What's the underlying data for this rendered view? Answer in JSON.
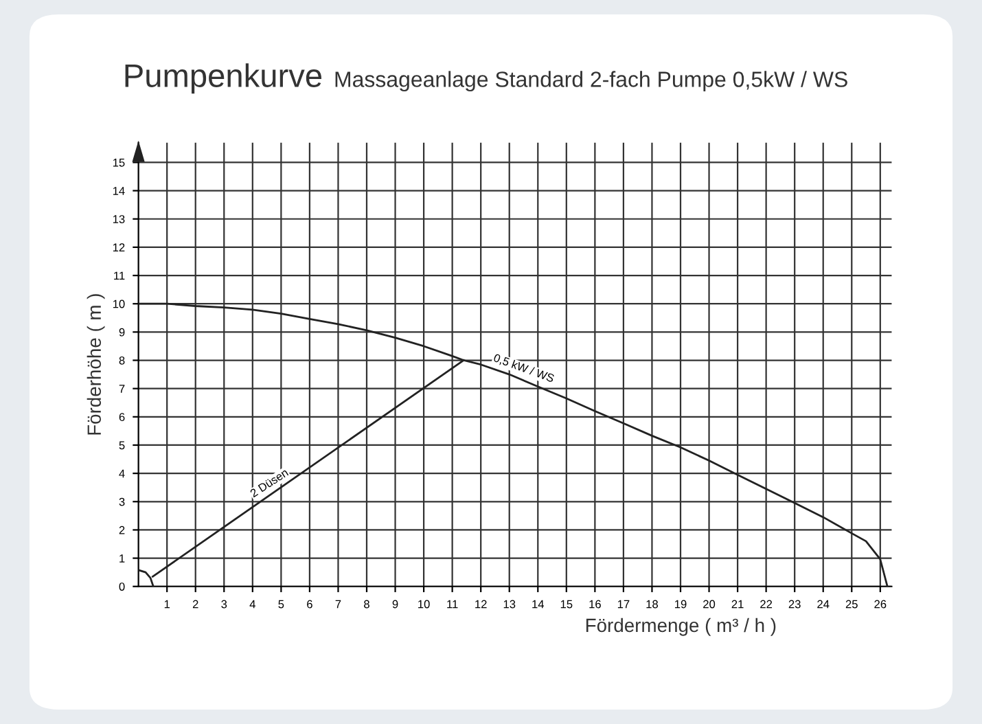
{
  "chart_data": {
    "type": "line",
    "title": "Pumpenkurve",
    "subtitle": "Massageanlage Standard 2-fach Pumpe 0,5kW / WS",
    "xlabel": "Fördermenge ( m³ / h )",
    "ylabel": "Förderhöhe ( m )",
    "xlim": [
      0,
      26.4
    ],
    "ylim": [
      0,
      15.7
    ],
    "xticks": [
      1,
      2,
      3,
      4,
      5,
      6,
      7,
      8,
      9,
      10,
      11,
      12,
      13,
      14,
      15,
      16,
      17,
      18,
      19,
      20,
      21,
      22,
      23,
      24,
      25,
      26
    ],
    "yticks": [
      0,
      1,
      2,
      3,
      4,
      5,
      6,
      7,
      8,
      9,
      10,
      11,
      12,
      13,
      14,
      15
    ],
    "grid": true,
    "marker": "none",
    "line_style": "solid",
    "series": [
      {
        "color": "#222222",
        "x": [
          0,
          1,
          2,
          3,
          4,
          5,
          6,
          7,
          8,
          9,
          10,
          11,
          11.4,
          12,
          13,
          14,
          15,
          16,
          17,
          18,
          19,
          20,
          21,
          22,
          23,
          24,
          25,
          25.5,
          26,
          26.25
        ],
        "values": [
          10,
          10,
          9.92,
          9.87,
          9.79,
          9.65,
          9.46,
          9.28,
          9.06,
          8.8,
          8.5,
          8.15,
          8.0,
          7.85,
          7.5,
          7.07,
          6.65,
          6.2,
          5.77,
          5.33,
          4.92,
          4.45,
          3.95,
          3.45,
          2.95,
          2.45,
          1.88,
          1.6,
          0.96,
          0
        ]
      },
      {
        "color": "#222222",
        "x": [
          0.5,
          11.4
        ],
        "values": [
          0.35,
          8.0
        ]
      },
      {
        "color": "#222222",
        "x": [
          0,
          0.25,
          0.42,
          0.52
        ],
        "values": [
          0.58,
          0.5,
          0.3,
          0
        ]
      }
    ],
    "annotations": [
      {
        "text": "0,5 kW / WS",
        "x": 13.5,
        "y": 7.29
      },
      {
        "text": "2 Düsen",
        "x": 4.6,
        "y": 3.23
      }
    ]
  }
}
